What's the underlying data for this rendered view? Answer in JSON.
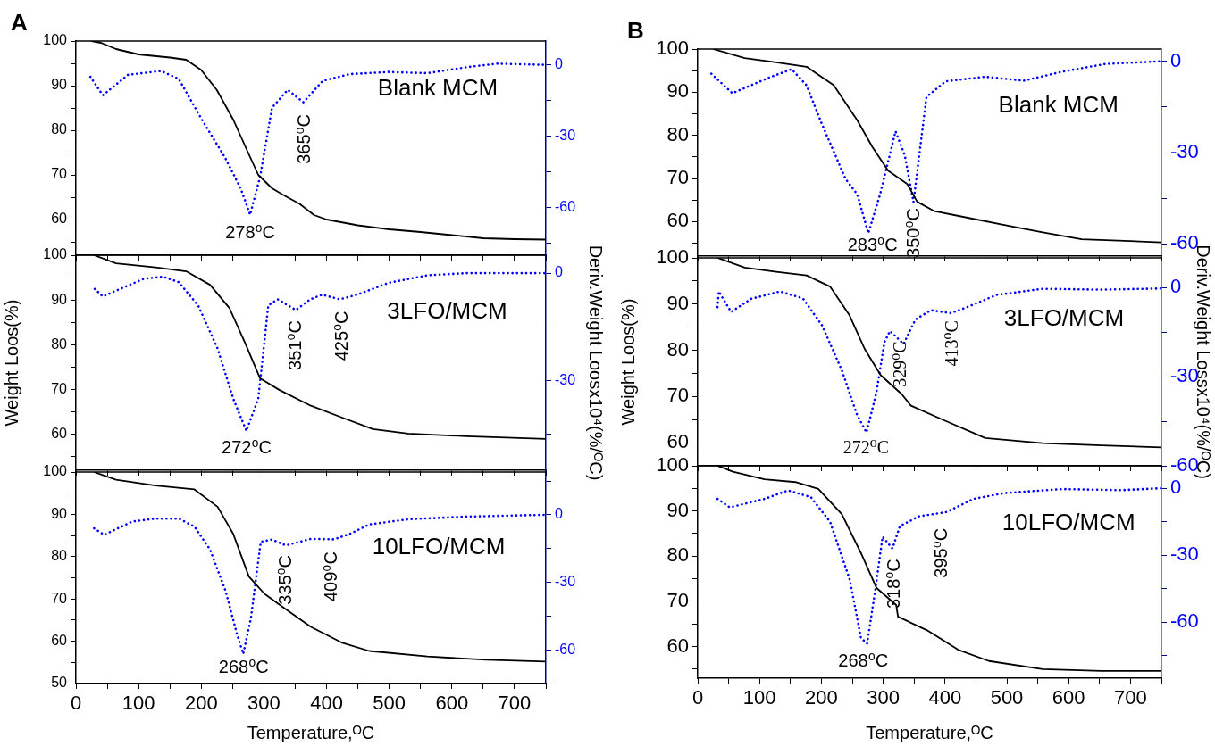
{
  "chart_data": [
    {
      "type": "line",
      "title": "A",
      "tick_labels": "y",
      "xlim": [
        0,
        750
      ],
      "xticks": [
        0,
        {
          "value": 50,
          "label": null
        },
        100,
        {
          "value": 150,
          "label": null
        },
        200,
        {
          "value": 250,
          "label": null
        },
        300,
        {
          "value": 350,
          "label": null
        },
        400,
        {
          "value": 450,
          "label": null
        },
        500,
        {
          "value": 550,
          "label": null
        },
        600,
        {
          "value": 650,
          "label": null
        },
        700,
        {
          "value": 750,
          "label": null
        }
      ],
      "ylim": [
        52,
        100
      ],
      "yticks": [
        {
          "value": 55,
          "label": null
        },
        60,
        {
          "value": 65,
          "label": null
        },
        70,
        {
          "value": 75,
          "label": null
        },
        80,
        {
          "value": 85,
          "label": null
        },
        90,
        {
          "value": 95,
          "label": null
        },
        100
      ],
      "y2lim": [
        -80,
        10
      ],
      "y2ticks": [
        {
          "value": -75,
          "label": null
        },
        -60,
        {
          "value": -45,
          "label": null
        },
        -30,
        {
          "value": -15,
          "label": null
        },
        0
      ],
      "series": [
        {
          "color": "#000000",
          "x": [
            25,
            40,
            64,
            100,
            150,
            176,
            200,
            225,
            251,
            276,
            291,
            313,
            331,
            357,
            380,
            400,
            450,
            500,
            550,
            600,
            650,
            700,
            750
          ],
          "values": [
            100,
            99.6,
            98.2,
            97,
            96.3,
            95.8,
            93.5,
            89,
            82.4,
            74.6,
            70,
            67,
            65.5,
            63.5,
            61,
            60,
            58.7,
            57.8,
            57.2,
            56.5,
            55.8,
            55.6,
            55.5
          ]
        },
        {
          "color": "#0000ff",
          "axis": "y2",
          "line_style": "dotted",
          "x": [
            23,
            43,
            83,
            136,
            164,
            201,
            238,
            263,
            278,
            294,
            313,
            338,
            363,
            394,
            437,
            499,
            561,
            623,
            673,
            750
          ],
          "values": [
            -5,
            -12.8,
            -4.2,
            -2.6,
            -5.9,
            -23,
            -39,
            -52,
            -63,
            -47,
            -18,
            -10.5,
            -15.7,
            -6.7,
            -3.9,
            -3,
            -3.5,
            -1,
            0.5,
            0
          ]
        }
      ],
      "annotations": [
        "Blank MCM",
        "278⁰C",
        "365⁰C"
      ]
    },
    {
      "type": "line",
      "tick_labels": "y",
      "ylabel": "Weight Loos(%)",
      "y2label": "Deriv.Weight Loosx10⁴(%/ᴼC)",
      "xlim": [
        0,
        750
      ],
      "xticks": [
        0,
        {
          "value": 50,
          "label": null
        },
        100,
        {
          "value": 150,
          "label": null
        },
        200,
        {
          "value": 250,
          "label": null
        },
        300,
        {
          "value": 350,
          "label": null
        },
        400,
        {
          "value": 450,
          "label": null
        },
        500,
        {
          "value": 550,
          "label": null
        },
        600,
        {
          "value": 650,
          "label": null
        },
        700,
        {
          "value": 750,
          "label": null
        }
      ],
      "ylim": [
        52,
        100
      ],
      "yticks": [
        {
          "value": 55,
          "label": null
        },
        60,
        {
          "value": 65,
          "label": null
        },
        70,
        {
          "value": 75,
          "label": null
        },
        80,
        {
          "value": 85,
          "label": null
        },
        90,
        {
          "value": 95,
          "label": null
        },
        100
      ],
      "y2lim": [
        -55,
        5
      ],
      "y2ticks": [
        {
          "value": -45,
          "label": null
        },
        -30,
        {
          "value": -15,
          "label": null
        },
        0
      ],
      "series": [
        {
          "color": "#000000",
          "x": [
            29,
            64,
            127,
            176,
            214,
            245,
            270,
            294,
            325,
            375,
            424,
            474,
            530,
            623,
            750
          ],
          "values": [
            100,
            98.2,
            97.3,
            96.4,
            93.4,
            88.2,
            80.4,
            72.5,
            69.9,
            66.4,
            63.8,
            61.2,
            60.2,
            59.6,
            59
          ]
        },
        {
          "color": "#0000ff",
          "axis": "y2",
          "line_style": "dotted",
          "x": [
            30,
            43,
            108,
            139,
            164,
            195,
            226,
            251,
            272,
            291,
            307,
            322,
            351,
            374,
            393,
            421,
            449,
            499,
            561,
            623,
            750
          ],
          "values": [
            -4.4,
            -6.5,
            -1.6,
            -1,
            -2.5,
            -9,
            -21,
            -35,
            -44,
            -35,
            -9,
            -7.3,
            -10.3,
            -7.3,
            -6,
            -7.3,
            -6,
            -2.7,
            -0.6,
            0,
            0
          ]
        }
      ],
      "annotations": [
        "3LFO/MCM",
        "272⁰C",
        "351⁰C",
        "425⁰C"
      ]
    },
    {
      "type": "line",
      "xlabel": "Temperature,ᴼC",
      "xlim": [
        0,
        750
      ],
      "xticks": [
        0,
        {
          "value": 50,
          "label": null
        },
        100,
        {
          "value": 150,
          "label": null
        },
        200,
        {
          "value": 250,
          "label": null
        },
        300,
        {
          "value": 350,
          "label": null
        },
        400,
        {
          "value": 450,
          "label": null
        },
        500,
        {
          "value": 550,
          "label": null
        },
        600,
        {
          "value": 650,
          "label": null
        },
        700,
        {
          "value": 750,
          "label": null
        }
      ],
      "ylim": [
        50,
        100
      ],
      "yticks": [
        50,
        {
          "value": 55,
          "label": null
        },
        60,
        {
          "value": 65,
          "label": null
        },
        70,
        {
          "value": 75,
          "label": null
        },
        80,
        {
          "value": 85,
          "label": null
        },
        90,
        {
          "value": 95,
          "label": null
        },
        100
      ],
      "y2lim": [
        -75,
        19
      ],
      "y2ticks": [
        {
          "value": -75,
          "label": null
        },
        -60,
        {
          "value": -45,
          "label": null
        },
        -30,
        {
          "value": -15,
          "label": null
        },
        0,
        {
          "value": 15,
          "label": null
        }
      ],
      "series": [
        {
          "color": "#000000",
          "x": [
            29,
            64,
            127,
            189,
            226,
            251,
            276,
            301,
            332,
            375,
            424,
            468,
            561,
            655,
            750
          ],
          "values": [
            100,
            98.2,
            96.8,
            95.9,
            91.8,
            85.4,
            75.3,
            71.2,
            67.9,
            63.4,
            59.7,
            57.7,
            56.4,
            55.6,
            55.2
          ]
        },
        {
          "color": "#0000ff",
          "axis": "y2",
          "line_style": "dotted",
          "x": [
            29,
            45,
            90,
            127,
            164,
            189,
            214,
            239,
            257,
            267,
            279,
            295,
            313,
            335,
            375,
            412,
            437,
            468,
            530,
            623,
            750
          ],
          "values": [
            -6,
            -8.9,
            -3,
            -1.7,
            -1.7,
            -5.2,
            -15.4,
            -34,
            -53,
            -61.8,
            -46.4,
            -12,
            -11,
            -13.6,
            -10.7,
            -10.9,
            -8.5,
            -4.3,
            -2,
            -0.8,
            0
          ]
        }
      ],
      "annotations": [
        "10LFO/MCM",
        "268⁰C",
        "335⁰C",
        "409⁰C"
      ]
    },
    {
      "type": "line",
      "title": "B",
      "tick_labels": "y",
      "xlim": [
        0,
        750
      ],
      "xticks": [
        0,
        {
          "value": 50,
          "label": null
        },
        100,
        {
          "value": 150,
          "label": null
        },
        200,
        {
          "value": 250,
          "label": null
        },
        300,
        {
          "value": 350,
          "label": null
        },
        400,
        {
          "value": 450,
          "label": null
        },
        500,
        {
          "value": 550,
          "label": null
        },
        600,
        {
          "value": 650,
          "label": null
        },
        700,
        {
          "value": 750,
          "label": null
        }
      ],
      "ylim": [
        52,
        100
      ],
      "yticks": [
        {
          "value": 55,
          "label": null
        },
        60,
        {
          "value": 65,
          "label": null
        },
        70,
        {
          "value": 75,
          "label": null
        },
        80,
        {
          "value": 85,
          "label": null
        },
        90,
        {
          "value": 95,
          "label": null
        },
        100
      ],
      "y2lim": [
        -64,
        4
      ],
      "y2ticks": [
        -60,
        {
          "value": -45,
          "label": null
        },
        -30,
        {
          "value": -15,
          "label": null
        },
        0
      ],
      "series": [
        {
          "color": "#000000",
          "x": [
            25,
            76,
            127,
            176,
            220,
            258,
            283,
            308,
            339,
            355,
            383,
            433,
            496,
            558,
            621,
            750
          ],
          "values": [
            100,
            97.9,
            96.9,
            95.9,
            91.6,
            83.5,
            77.2,
            71.8,
            68.7,
            64.6,
            62.4,
            61,
            59.2,
            57.5,
            55.9,
            55.2
          ]
        },
        {
          "color": "#0000ff",
          "axis": "y2",
          "line_style": "dotted",
          "x": [
            22,
            56,
            115,
            152,
            176,
            201,
            239,
            258,
            276,
            295,
            320,
            335,
            349,
            370,
            401,
            465,
            527,
            590,
            659,
            750
          ],
          "values": [
            -4.1,
            -10.5,
            -5.4,
            -2.6,
            -7.9,
            -20.7,
            -38.6,
            -43.7,
            -56.5,
            -43.7,
            -23,
            -31,
            -46.3,
            -11.7,
            -6.6,
            -5.1,
            -6.4,
            -3.4,
            -0.9,
            0
          ]
        }
      ],
      "annotations": [
        "Blank MCM",
        "283⁰C",
        "350⁰C"
      ]
    },
    {
      "type": "line",
      "tick_labels": "y",
      "ylabel": "Weight Loos(%)",
      "y2label": "Deriv.Weight Lossx10⁴(%/ᴼC)",
      "xlim": [
        0,
        750
      ],
      "xticks": [
        0,
        {
          "value": 50,
          "label": null
        },
        100,
        {
          "value": 150,
          "label": null
        },
        200,
        {
          "value": 250,
          "label": null
        },
        300,
        {
          "value": 350,
          "label": null
        },
        400,
        {
          "value": 450,
          "label": null
        },
        500,
        {
          "value": 550,
          "label": null
        },
        600,
        {
          "value": 650,
          "label": null
        },
        700,
        {
          "value": 750,
          "label": null
        }
      ],
      "ylim": [
        55,
        100
      ],
      "yticks": [
        60,
        {
          "value": 65,
          "label": null
        },
        70,
        {
          "value": 75,
          "label": null
        },
        80,
        {
          "value": 85,
          "label": null
        },
        90,
        {
          "value": 95,
          "label": null
        },
        100
      ],
      "y2lim": [
        -60,
        10
      ],
      "y2ticks": [
        -60,
        {
          "value": -45,
          "label": null
        },
        -30,
        {
          "value": -15,
          "label": null
        },
        0
      ],
      "series": [
        {
          "color": "#000000",
          "x": [
            32,
            76,
            127,
            176,
            214,
            245,
            270,
            296,
            330,
            345,
            401,
            465,
            558,
            653,
            750
          ],
          "values": [
            100,
            97.9,
            97,
            96.2,
            93.8,
            87.7,
            80.3,
            74.6,
            70.5,
            68,
            64.7,
            61,
            59.9,
            59.4,
            59
          ]
        },
        {
          "color": "#0000ff",
          "axis": "y2",
          "line_style": "dotted",
          "x": [
            32,
            34,
            54,
            86,
            133,
            170,
            201,
            233,
            258,
            273,
            289,
            302,
            311,
            333,
            352,
            377,
            409,
            433,
            483,
            558,
            653,
            750
          ],
          "values": [
            -6.6,
            -1.3,
            -8.2,
            -3.8,
            -1.3,
            -3.6,
            -12.7,
            -27.8,
            -43,
            -48.8,
            -35.4,
            -18.4,
            -14.6,
            -19,
            -10.8,
            -7.6,
            -8.6,
            -6.8,
            -2.5,
            -0.4,
            -0.7,
            -0.3
          ]
        }
      ],
      "annotations": [
        "3LFO/MCM",
        "272⁰C",
        "329⁰C",
        "413⁰C"
      ]
    },
    {
      "type": "line",
      "xlabel": "Temperature,ᴼC",
      "xlim": [
        0,
        750
      ],
      "xticks": [
        0,
        {
          "value": 50,
          "label": null
        },
        100,
        {
          "value": 150,
          "label": null
        },
        200,
        {
          "value": 250,
          "label": null
        },
        300,
        {
          "value": 350,
          "label": null
        },
        400,
        {
          "value": 450,
          "label": null
        },
        500,
        {
          "value": 550,
          "label": null
        },
        600,
        {
          "value": 650,
          "label": null
        },
        700,
        {
          "value": 750,
          "label": null
        }
      ],
      "ylim": [
        53,
        100
      ],
      "yticks": [
        {
          "value": 55,
          "label": null
        },
        60,
        {
          "value": 65,
          "label": null
        },
        70,
        {
          "value": 75,
          "label": null
        },
        80,
        {
          "value": 85,
          "label": null
        },
        90,
        {
          "value": 95,
          "label": null
        },
        100
      ],
      "y2lim": [
        -85,
        10
      ],
      "y2ticks": [
        {
          "value": -75,
          "label": null
        },
        -60,
        {
          "value": -45,
          "label": null
        },
        -30,
        {
          "value": -15,
          "label": null
        },
        0
      ],
      "series": [
        {
          "color": "#000000",
          "x": [
            32,
            57,
            108,
            158,
            195,
            233,
            264,
            289,
            321,
            324,
            371,
            421,
            471,
            558,
            653,
            750
          ],
          "values": [
            100,
            98.7,
            97,
            96.4,
            94.9,
            89.3,
            80.7,
            73,
            69.2,
            66.6,
            63.6,
            59.3,
            56.8,
            55,
            54.6,
            54.6
          ]
        },
        {
          "color": "#0000ff",
          "axis": "y2",
          "line_style": "dotted",
          "x": [
            32,
            52,
            108,
            146,
            183,
            214,
            246,
            264,
            274,
            287,
            299,
            315,
            327,
            358,
            402,
            446,
            496,
            590,
            684,
            750
          ],
          "values": [
            -4.8,
            -8.6,
            -4.8,
            -1,
            -4,
            -15,
            -41,
            -67,
            -69.5,
            -46,
            -21.7,
            -27,
            -17,
            -12.6,
            -10.7,
            -4.8,
            -2.2,
            -0.4,
            -0.9,
            0
          ]
        }
      ],
      "annotations": [
        "10LFO/MCM",
        "268⁰C",
        "318⁰C",
        "395⁰C"
      ]
    }
  ]
}
